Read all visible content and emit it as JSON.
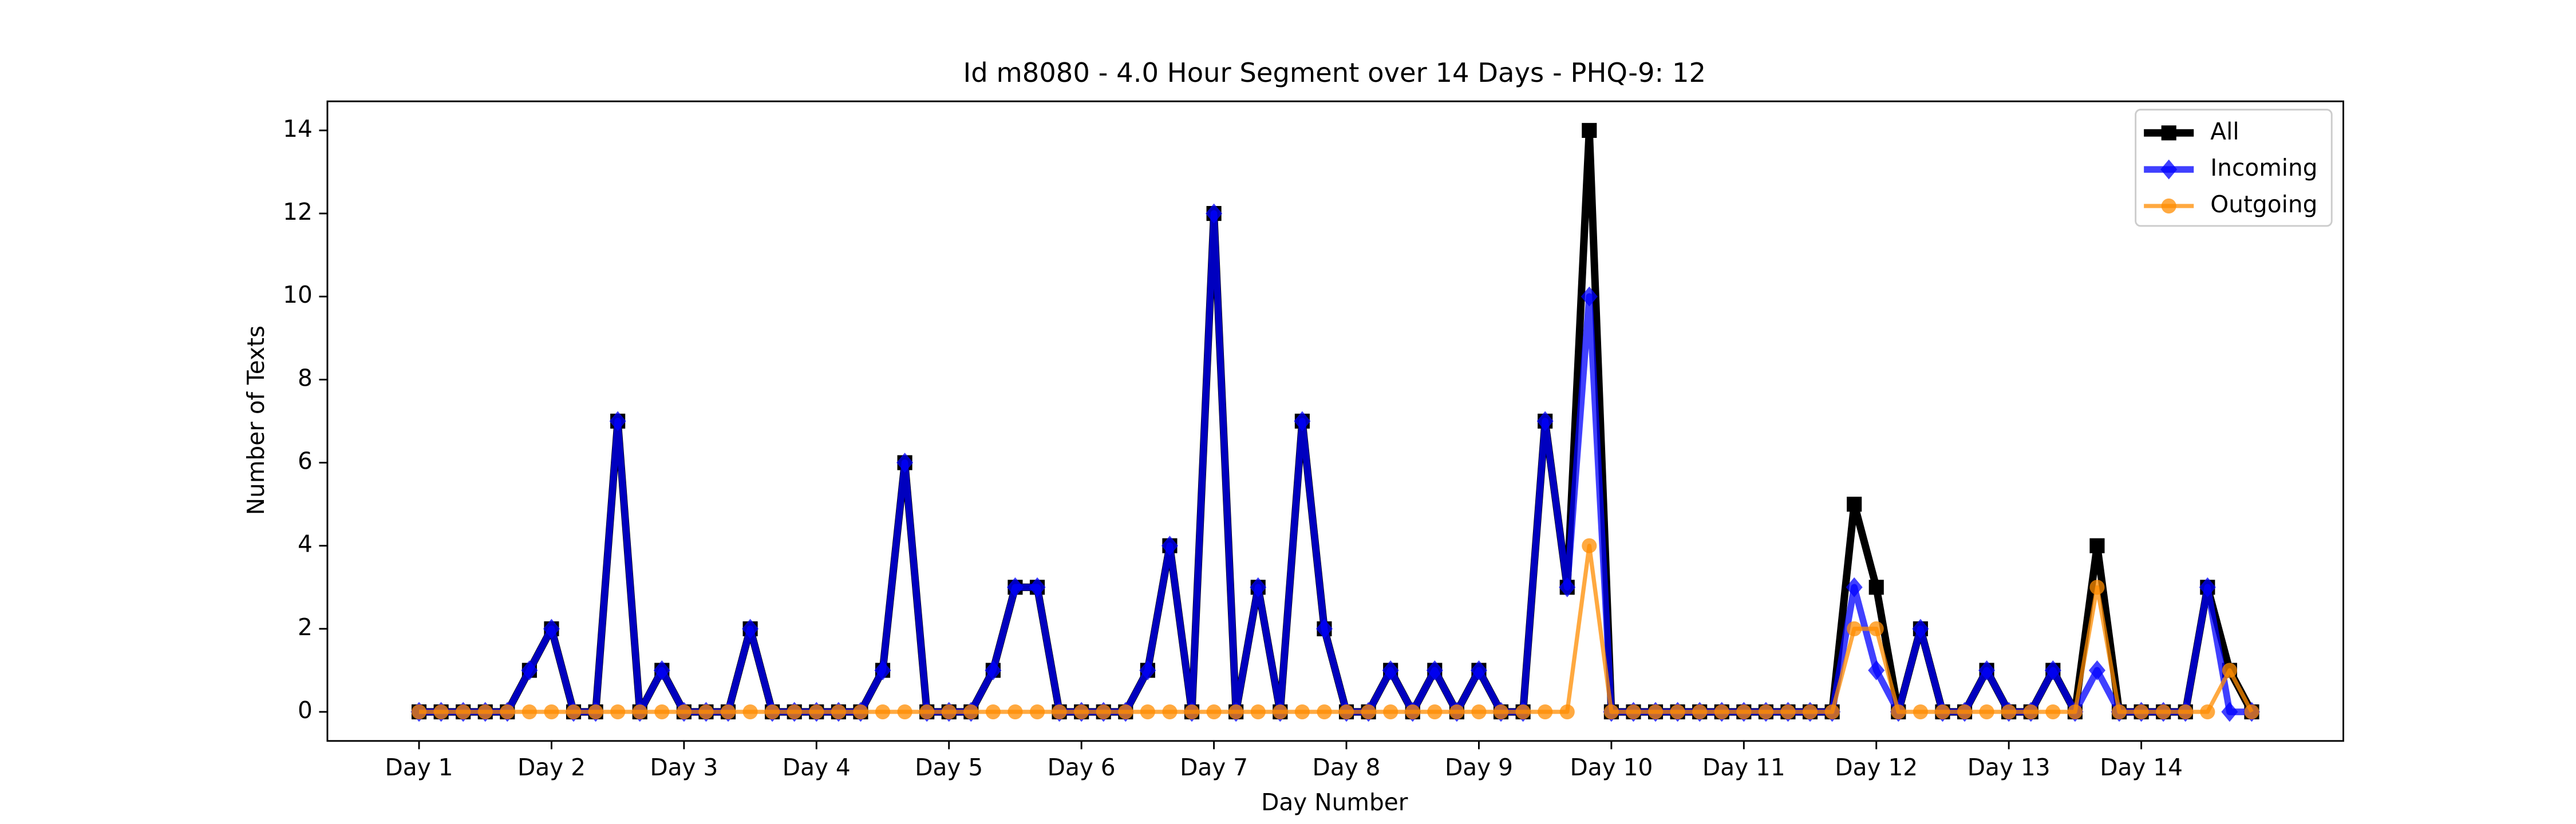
{
  "chart_data": {
    "type": "line",
    "title": "Id m8080 - 4.0 Hour Segment over 14 Days - PHQ-9: 12",
    "xlabel": "Day Number",
    "ylabel": "Number of Texts",
    "x": [
      0,
      1,
      2,
      3,
      4,
      5,
      6,
      7,
      8,
      9,
      10,
      11,
      12,
      13,
      14,
      15,
      16,
      17,
      18,
      19,
      20,
      21,
      22,
      23,
      24,
      25,
      26,
      27,
      28,
      29,
      30,
      31,
      32,
      33,
      34,
      35,
      36,
      37,
      38,
      39,
      40,
      41,
      42,
      43,
      44,
      45,
      46,
      47,
      48,
      49,
      50,
      51,
      52,
      53,
      54,
      55,
      56,
      57,
      58,
      59,
      60,
      61,
      62,
      63,
      64,
      65,
      66,
      67,
      68,
      69,
      70,
      71,
      72,
      73,
      74,
      75,
      76,
      77,
      78,
      79,
      80,
      81,
      82,
      83
    ],
    "series": [
      {
        "name": "All",
        "color": "#000000",
        "marker": "square",
        "values": [
          0,
          0,
          0,
          0,
          0,
          1,
          2,
          0,
          0,
          7,
          0,
          1,
          0,
          0,
          0,
          2,
          0,
          0,
          0,
          0,
          0,
          1,
          6,
          0,
          0,
          0,
          1,
          3,
          3,
          0,
          0,
          0,
          0,
          1,
          4,
          0,
          12,
          0,
          3,
          0,
          7,
          2,
          0,
          0,
          1,
          0,
          1,
          0,
          1,
          0,
          0,
          7,
          3,
          14,
          0,
          0,
          0,
          0,
          0,
          0,
          0,
          0,
          0,
          0,
          0,
          5,
          3,
          0,
          2,
          0,
          0,
          1,
          0,
          0,
          1,
          0,
          4,
          0,
          0,
          0,
          0,
          3,
          1,
          0
        ]
      },
      {
        "name": "Incoming",
        "color": "#0000ff",
        "marker": "diamond",
        "values": [
          0,
          0,
          0,
          0,
          0,
          1,
          2,
          0,
          0,
          7,
          0,
          1,
          0,
          0,
          0,
          2,
          0,
          0,
          0,
          0,
          0,
          1,
          6,
          0,
          0,
          0,
          1,
          3,
          3,
          0,
          0,
          0,
          0,
          1,
          4,
          0,
          12,
          0,
          3,
          0,
          7,
          2,
          0,
          0,
          1,
          0,
          1,
          0,
          1,
          0,
          0,
          7,
          3,
          10,
          0,
          0,
          0,
          0,
          0,
          0,
          0,
          0,
          0,
          0,
          0,
          3,
          1,
          0,
          2,
          0,
          0,
          1,
          0,
          0,
          1,
          0,
          1,
          0,
          0,
          0,
          0,
          3,
          0,
          0
        ]
      },
      {
        "name": "Outgoing",
        "color": "#ff8c00",
        "marker": "circle",
        "values": [
          0,
          0,
          0,
          0,
          0,
          0,
          0,
          0,
          0,
          0,
          0,
          0,
          0,
          0,
          0,
          0,
          0,
          0,
          0,
          0,
          0,
          0,
          0,
          0,
          0,
          0,
          0,
          0,
          0,
          0,
          0,
          0,
          0,
          0,
          0,
          0,
          0,
          0,
          0,
          0,
          0,
          0,
          0,
          0,
          0,
          0,
          0,
          0,
          0,
          0,
          0,
          0,
          0,
          4,
          0,
          0,
          0,
          0,
          0,
          0,
          0,
          0,
          0,
          0,
          0,
          2,
          2,
          0,
          0,
          0,
          0,
          0,
          0,
          0,
          0,
          0,
          3,
          0,
          0,
          0,
          0,
          0,
          1,
          0
        ]
      }
    ],
    "xlim": [
      -4.15,
      87.15
    ],
    "xticks": [
      {
        "value": 0,
        "label": "Day 1"
      },
      {
        "value": 6,
        "label": "Day 2"
      },
      {
        "value": 12,
        "label": "Day 3"
      },
      {
        "value": 18,
        "label": "Day 4"
      },
      {
        "value": 24,
        "label": "Day 5"
      },
      {
        "value": 30,
        "label": "Day 6"
      },
      {
        "value": 36,
        "label": "Day 7"
      },
      {
        "value": 42,
        "label": "Day 8"
      },
      {
        "value": 48,
        "label": "Day 9"
      },
      {
        "value": 54,
        "label": "Day 10"
      },
      {
        "value": 60,
        "label": "Day 11"
      },
      {
        "value": 66,
        "label": "Day 12"
      },
      {
        "value": 72,
        "label": "Day 13"
      },
      {
        "value": 78,
        "label": "Day 14"
      }
    ],
    "ylim": [
      -0.7,
      14.7
    ],
    "yticks": [
      0,
      2,
      4,
      6,
      8,
      10,
      12,
      14
    ],
    "grid": false,
    "legend": "upper right"
  }
}
